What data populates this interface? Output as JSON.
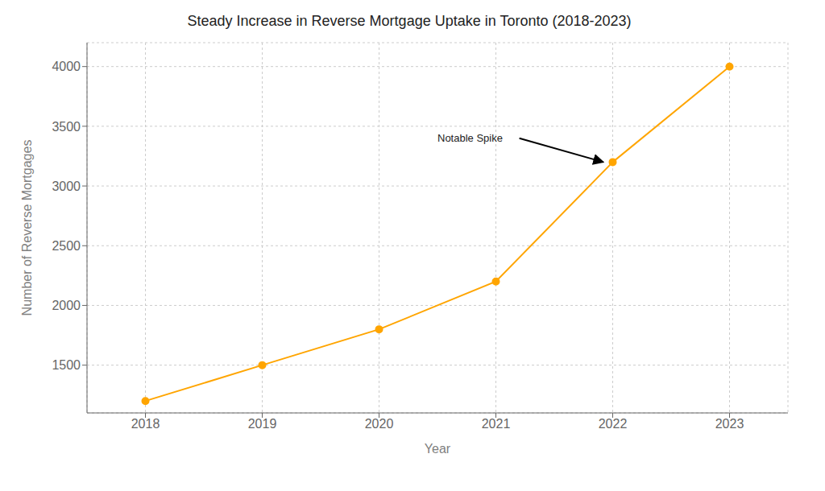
{
  "chart_data": {
    "type": "line",
    "title": "Steady Increase in Reverse Mortgage Uptake in Toronto (2018-2023)",
    "xlabel": "Year",
    "ylabel": "Number of Reverse Mortgages",
    "x": [
      2018,
      2019,
      2020,
      2021,
      2022,
      2023
    ],
    "values": [
      1200,
      1500,
      1800,
      2200,
      3200,
      4000
    ],
    "color": "#FFA500",
    "marker": "circle",
    "xlim": [
      2017.5,
      2023.5
    ],
    "xticks": [
      2018,
      2019,
      2020,
      2021,
      2022,
      2023
    ],
    "ylim": [
      1100,
      4200
    ],
    "yticks": [
      1500,
      2000,
      2500,
      3000,
      3500,
      4000
    ],
    "grid": true,
    "annotations": [
      {
        "text": "Notable Spike",
        "x": 2021.92,
        "y": 3200,
        "text_x": 2020.5,
        "text_y": 3400
      }
    ]
  }
}
